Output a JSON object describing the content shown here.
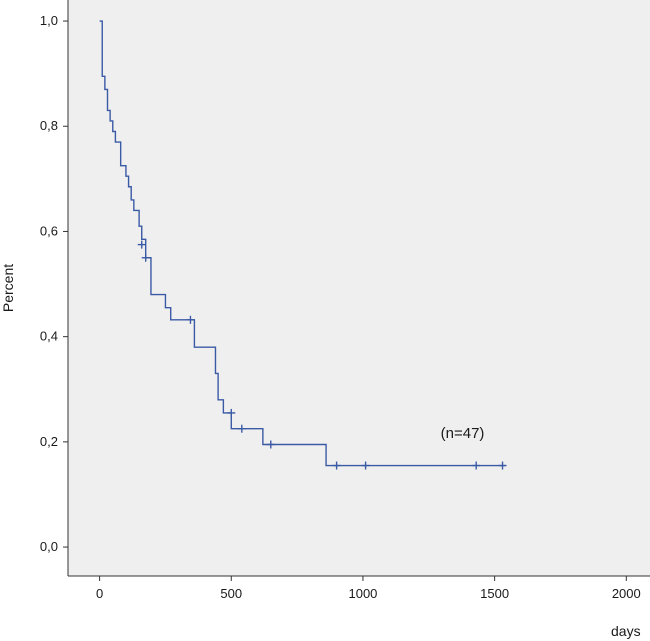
{
  "chart_data": {
    "type": "line",
    "title": "",
    "xlabel": "days",
    "ylabel": "Percent",
    "xlim": [
      -120,
      2090
    ],
    "ylim": [
      -0.055,
      1.04
    ],
    "xticks": [
      0,
      500,
      1000,
      1500,
      2000
    ],
    "xtick_labels": [
      "0",
      "500",
      "1000",
      "1500",
      "2000"
    ],
    "yticks": [
      0.0,
      0.2,
      0.4,
      0.6,
      0.8,
      1.0
    ],
    "ytick_labels": [
      "0,0",
      "0,2",
      "0,4",
      "0,6",
      "0,8",
      "1,0"
    ],
    "grid": false,
    "annotation": {
      "text": "(n=47)",
      "x": 1295,
      "y": 0.2
    },
    "colors": {
      "line": "#3b5aa6",
      "plot_bg": "#efefef",
      "axis": "#333333"
    },
    "series": [
      {
        "step": true,
        "x": [
          0,
          10,
          20,
          30,
          40,
          50,
          60,
          80,
          100,
          110,
          120,
          130,
          150,
          160,
          175,
          195,
          250,
          270,
          350,
          360,
          440,
          450,
          470,
          500,
          620,
          860,
          1540
        ],
        "y": [
          1.0,
          0.895,
          0.87,
          0.83,
          0.81,
          0.79,
          0.77,
          0.725,
          0.705,
          0.685,
          0.66,
          0.64,
          0.61,
          0.585,
          0.55,
          0.48,
          0.455,
          0.432,
          0.432,
          0.38,
          0.33,
          0.28,
          0.255,
          0.225,
          0.195,
          0.155,
          0.155
        ],
        "censored": [
          {
            "x": 160,
            "y": 0.575
          },
          {
            "x": 175,
            "y": 0.55
          },
          {
            "x": 345,
            "y": 0.432
          },
          {
            "x": 500,
            "y": 0.255
          },
          {
            "x": 540,
            "y": 0.225
          },
          {
            "x": 650,
            "y": 0.195
          },
          {
            "x": 900,
            "y": 0.155
          },
          {
            "x": 1010,
            "y": 0.155
          },
          {
            "x": 1430,
            "y": 0.155
          },
          {
            "x": 1530,
            "y": 0.155
          }
        ]
      }
    ]
  }
}
